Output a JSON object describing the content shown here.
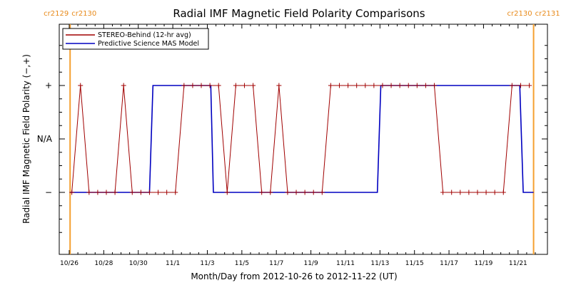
{
  "chart_data": {
    "type": "line",
    "title": "Radial IMF Magnetic Field Polarity Comparisons",
    "xlabel": "Month/Day from 2012-10-26 to 2012-11-22 (UT)",
    "ylabel": "Radial IMF Magnetic Field Polarity (−,+)",
    "xlim": [
      0,
      27
    ],
    "ylim": [
      -2,
      2
    ],
    "y_ticks": [
      {
        "value": 1,
        "label": "+"
      },
      {
        "value": 0,
        "label": "N/A"
      },
      {
        "value": -1,
        "label": "−"
      }
    ],
    "x_ticks": [
      {
        "value": 0,
        "label": "10/26"
      },
      {
        "value": 2,
        "label": "10/28"
      },
      {
        "value": 4,
        "label": "10/30"
      },
      {
        "value": 6,
        "label": "11/1"
      },
      {
        "value": 8,
        "label": "11/3"
      },
      {
        "value": 10,
        "label": "11/5"
      },
      {
        "value": 12,
        "label": "11/7"
      },
      {
        "value": 14,
        "label": "11/9"
      },
      {
        "value": 16,
        "label": "11/11"
      },
      {
        "value": 18,
        "label": "11/13"
      },
      {
        "value": 20,
        "label": "11/15"
      },
      {
        "value": 22,
        "label": "11/17"
      },
      {
        "value": 24,
        "label": "11/19"
      },
      {
        "value": 26,
        "label": "11/21"
      }
    ],
    "carrington_markers": [
      {
        "x": 0.05,
        "label_left": "cr2129",
        "label_right": "cr2130"
      },
      {
        "x": 26.9,
        "label_left": "cr2130",
        "label_right": "cr2131"
      }
    ],
    "legend": {
      "position": "top-left"
    },
    "series": [
      {
        "name": "STEREO-Behind (12-hr avg)",
        "color": "#a00000",
        "x": [
          0.15,
          0.65,
          1.15,
          1.65,
          2.15,
          2.65,
          3.15,
          3.65,
          4.15,
          4.65,
          5.15,
          5.65,
          6.15,
          6.65,
          7.15,
          7.65,
          8.15,
          8.65,
          9.15,
          9.65,
          10.15,
          10.65,
          11.15,
          11.65,
          12.15,
          12.65,
          13.15,
          13.65,
          14.15,
          14.65,
          15.15,
          15.65,
          16.15,
          16.65,
          17.15,
          17.65,
          18.15,
          18.65,
          19.15,
          19.65,
          20.15,
          20.65,
          21.15,
          21.65,
          22.15,
          22.65,
          23.15,
          23.65,
          24.15,
          24.65,
          25.15,
          25.65,
          26.15,
          26.65
        ],
        "values": [
          -1,
          1,
          -1,
          -1,
          -1,
          -1,
          1,
          -1,
          -1,
          -1,
          -1,
          -1,
          -1,
          1,
          1,
          1,
          1,
          1,
          -1,
          1,
          1,
          1,
          -1,
          -1,
          1,
          -1,
          -1,
          -1,
          -1,
          -1,
          1,
          1,
          1,
          1,
          1,
          1,
          1,
          1,
          1,
          1,
          1,
          1,
          1,
          -1,
          -1,
          -1,
          -1,
          -1,
          -1,
          -1,
          -1,
          1,
          1,
          1
        ]
      },
      {
        "name": "Predictive Science MAS Model",
        "color": "#0000c0",
        "steps": [
          {
            "x": 0.05,
            "y": -1
          },
          {
            "x": 4.65,
            "y": -1
          },
          {
            "x": 4.85,
            "y": 1
          },
          {
            "x": 8.2,
            "y": 1
          },
          {
            "x": 8.35,
            "y": -1
          },
          {
            "x": 17.85,
            "y": -1
          },
          {
            "x": 18.05,
            "y": 1
          },
          {
            "x": 26.1,
            "y": 1
          },
          {
            "x": 26.3,
            "y": -1
          },
          {
            "x": 26.9,
            "y": -1
          }
        ]
      }
    ]
  }
}
